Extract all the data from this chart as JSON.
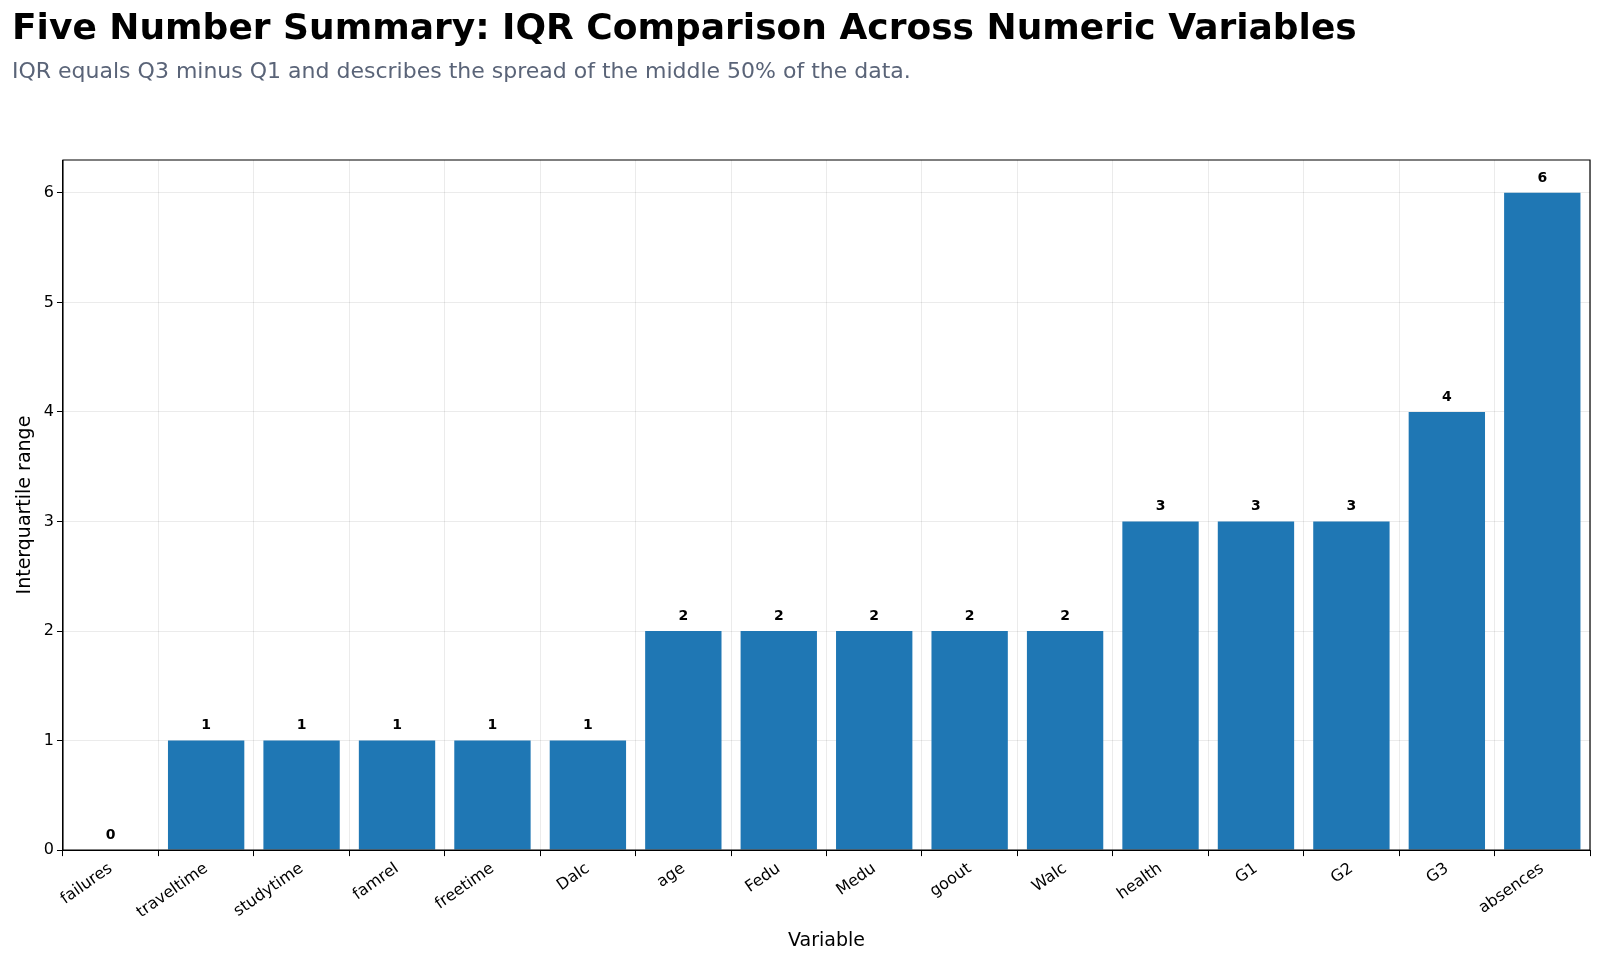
{
  "chart_data": {
    "type": "bar",
    "title": "Five Number Summary: IQR Comparison Across Numeric Variables",
    "subtitle": "IQR equals Q3 minus Q1 and describes the spread of the middle 50% of the data.",
    "xlabel": "Variable",
    "ylabel": "Interquartile range",
    "categories": [
      "failures",
      "traveltime",
      "studytime",
      "famrel",
      "freetime",
      "Dalc",
      "age",
      "Fedu",
      "Medu",
      "goout",
      "Walc",
      "health",
      "G1",
      "G2",
      "G3",
      "absences"
    ],
    "values": [
      0,
      1,
      1,
      1,
      1,
      1,
      2,
      2,
      2,
      2,
      2,
      3,
      3,
      3,
      4,
      6
    ],
    "color": "#1f77b4",
    "ylim": [
      0,
      6.3
    ],
    "yticks": [
      0,
      1,
      2,
      3,
      4,
      5,
      6
    ],
    "grid": true,
    "data_labels": true
  }
}
